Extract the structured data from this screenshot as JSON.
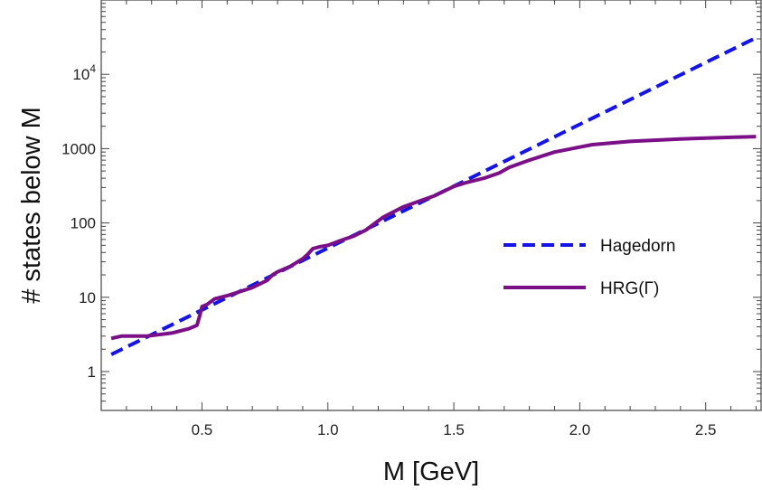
{
  "chart_data": {
    "type": "line",
    "title": "",
    "xlabel": "M [GeV]",
    "ylabel": "# states below M",
    "xlim": [
      0.1,
      2.72
    ],
    "ylim": [
      0.3,
      100000
    ],
    "yscale": "log",
    "grid": false,
    "legend_position": "center-right",
    "x_ticks": [
      {
        "value": 0.5,
        "label": "0.5"
      },
      {
        "value": 1.0,
        "label": "1.0"
      },
      {
        "value": 1.5,
        "label": "1.5"
      },
      {
        "value": 2.0,
        "label": "2.0"
      },
      {
        "value": 2.5,
        "label": "2.5"
      }
    ],
    "y_ticks": [
      {
        "value": 1,
        "label": "1"
      },
      {
        "value": 10,
        "label": "10"
      },
      {
        "value": 100,
        "label": "100"
      },
      {
        "value": 1000,
        "label": "1000"
      },
      {
        "value": 10000,
        "label": "10",
        "exponent": "4"
      }
    ],
    "series": [
      {
        "name": "Hagedorn",
        "color": "#1414e6",
        "style": "dashed",
        "x": [
          0.14,
          2.7
        ],
        "y": [
          1.7,
          31000
        ]
      },
      {
        "name": "HRG(Γ)",
        "color": "#7a0f87",
        "style": "solid",
        "x": [
          0.14,
          0.18,
          0.28,
          0.38,
          0.45,
          0.48,
          0.49,
          0.5,
          0.52,
          0.55,
          0.6,
          0.7,
          0.76,
          0.78,
          0.8,
          0.85,
          0.9,
          0.92,
          0.94,
          0.97,
          1.0,
          1.05,
          1.1,
          1.15,
          1.18,
          1.22,
          1.3,
          1.35,
          1.42,
          1.5,
          1.55,
          1.62,
          1.68,
          1.72,
          1.8,
          1.9,
          2.0,
          2.05,
          2.2,
          2.4,
          2.6,
          2.7
        ],
        "y": [
          2.8,
          3.0,
          3.0,
          3.3,
          3.8,
          4.2,
          5.5,
          7.5,
          8.0,
          9.5,
          10.5,
          13.5,
          17,
          20,
          22,
          26,
          33,
          38,
          45,
          48,
          50,
          58,
          66,
          80,
          95,
          120,
          165,
          190,
          230,
          310,
          350,
          400,
          470,
          560,
          700,
          900,
          1050,
          1130,
          1250,
          1350,
          1420,
          1450
        ]
      }
    ]
  }
}
